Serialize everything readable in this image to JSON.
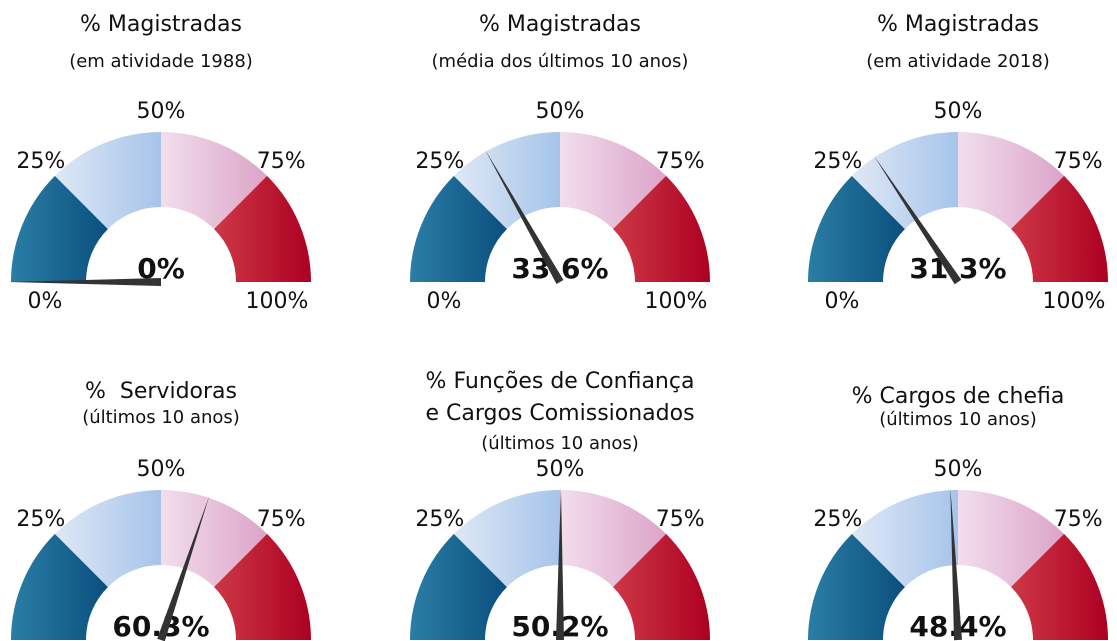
{
  "chart_data": [
    {
      "type": "gauge",
      "title": [
        "% Magistradas"
      ],
      "subtitle": "(em atividade 1988)",
      "value": 0,
      "value_label": "0%",
      "lim": [
        0,
        100
      ],
      "ticks": [
        {
          "value": 0,
          "label": "0%"
        },
        {
          "value": 25,
          "label": "25%"
        },
        {
          "value": 50,
          "label": "50%"
        },
        {
          "value": 75,
          "label": "75%"
        },
        {
          "value": 100,
          "label": "100%"
        }
      ],
      "colors": [
        [
          "#2a7ea6",
          "#0b4f7e"
        ],
        [
          "#dfe8f6",
          "#a6c4ea"
        ],
        [
          "#f2deed",
          "#dca4c8"
        ],
        [
          "#cd3846",
          "#ad0022"
        ]
      ],
      "needle_color": "#333333"
    },
    {
      "type": "gauge",
      "title": [
        "% Magistradas"
      ],
      "subtitle": "(média dos últimos 10 anos)",
      "value": 33.6,
      "value_label": "33.6%",
      "lim": [
        0,
        100
      ],
      "ticks": [
        {
          "value": 0,
          "label": "0%"
        },
        {
          "value": 25,
          "label": "25%"
        },
        {
          "value": 50,
          "label": "50%"
        },
        {
          "value": 75,
          "label": "75%"
        },
        {
          "value": 100,
          "label": "100%"
        }
      ],
      "colors": [
        [
          "#2a7ea6",
          "#0b4f7e"
        ],
        [
          "#dfe8f6",
          "#a6c4ea"
        ],
        [
          "#f2deed",
          "#dca4c8"
        ],
        [
          "#cd3846",
          "#ad0022"
        ]
      ],
      "needle_color": "#333333"
    },
    {
      "type": "gauge",
      "title": [
        "% Magistradas"
      ],
      "subtitle": "(em atividade 2018)",
      "value": 31.3,
      "value_label": "31.3%",
      "lim": [
        0,
        100
      ],
      "ticks": [
        {
          "value": 0,
          "label": "0%"
        },
        {
          "value": 25,
          "label": "25%"
        },
        {
          "value": 50,
          "label": "50%"
        },
        {
          "value": 75,
          "label": "75%"
        },
        {
          "value": 100,
          "label": "100%"
        }
      ],
      "colors": [
        [
          "#2a7ea6",
          "#0b4f7e"
        ],
        [
          "#dfe8f6",
          "#a6c4ea"
        ],
        [
          "#f2deed",
          "#dca4c8"
        ],
        [
          "#cd3846",
          "#ad0022"
        ]
      ],
      "needle_color": "#333333"
    },
    {
      "type": "gauge",
      "title": [
        "%  Servidoras"
      ],
      "subtitle": "(últimos 10 anos)",
      "value": 60.3,
      "value_label": "60.3%",
      "lim": [
        0,
        100
      ],
      "ticks": [
        {
          "value": 25,
          "label": "25%"
        },
        {
          "value": 50,
          "label": "50%"
        },
        {
          "value": 75,
          "label": "75%"
        }
      ],
      "colors": [
        [
          "#2a7ea6",
          "#0b4f7e"
        ],
        [
          "#dfe8f6",
          "#a6c4ea"
        ],
        [
          "#f2deed",
          "#dca4c8"
        ],
        [
          "#cd3846",
          "#ad0022"
        ]
      ],
      "needle_color": "#333333"
    },
    {
      "type": "gauge",
      "title": [
        "% Funções de Confiança",
        "e Cargos Comissionados"
      ],
      "subtitle": "(últimos 10 anos)",
      "value": 50.2,
      "value_label": "50.2%",
      "lim": [
        0,
        100
      ],
      "ticks": [
        {
          "value": 25,
          "label": "25%"
        },
        {
          "value": 50,
          "label": "50%"
        },
        {
          "value": 75,
          "label": "75%"
        }
      ],
      "colors": [
        [
          "#2a7ea6",
          "#0b4f7e"
        ],
        [
          "#dfe8f6",
          "#a6c4ea"
        ],
        [
          "#f2deed",
          "#dca4c8"
        ],
        [
          "#cd3846",
          "#ad0022"
        ]
      ],
      "needle_color": "#333333"
    },
    {
      "type": "gauge",
      "title": [
        "% Cargos de chefia"
      ],
      "subtitle": "(últimos 10 anos)",
      "value": 48.4,
      "value_label": "48.4%",
      "lim": [
        0,
        100
      ],
      "ticks": [
        {
          "value": 25,
          "label": "25%"
        },
        {
          "value": 50,
          "label": "50%"
        },
        {
          "value": 75,
          "label": "75%"
        }
      ],
      "colors": [
        [
          "#2a7ea6",
          "#0b4f7e"
        ],
        [
          "#dfe8f6",
          "#a6c4ea"
        ],
        [
          "#f2deed",
          "#dca4c8"
        ],
        [
          "#cd3846",
          "#ad0022"
        ]
      ],
      "needle_color": "#333333"
    }
  ]
}
